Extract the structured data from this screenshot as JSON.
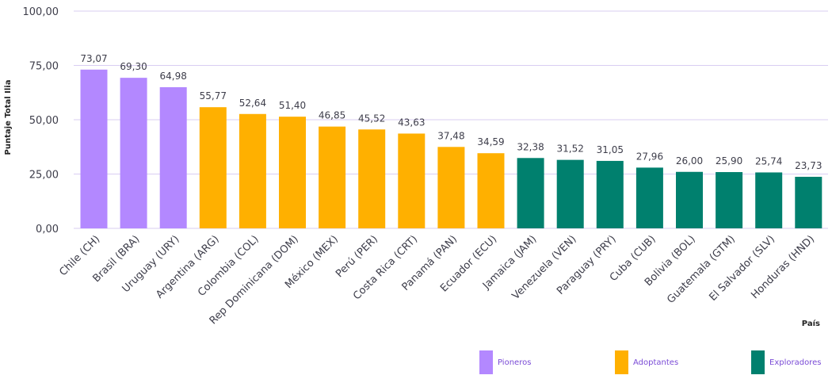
{
  "chart_data": {
    "type": "bar",
    "title": "",
    "xlabel": "País",
    "ylabel": "Puntaje Total Ilia",
    "ylim": [
      0,
      100
    ],
    "yticks": [
      "0,00",
      "25,00",
      "50,00",
      "75,00",
      "100,00"
    ],
    "categories": [
      "Chile (CH)",
      "Brasil (BRA)",
      "Uruguay (URY)",
      "Argentina (ARG)",
      "Colombia (COL)",
      "Rep Dominicana (DOM)",
      "México (MEX)",
      "Perú (PER)",
      "Costa Rica (CRT)",
      "Panamá (PAN)",
      "Ecuador (ECU)",
      "Jamaica (JAM)",
      "Venezuela (VEN)",
      "Paraguay (PRY)",
      "Cuba (CUB)",
      "Bolivia (BOL)",
      "Guatemala (GTM)",
      "El Salvador (SLV)",
      "Honduras (HND)"
    ],
    "values": [
      73.07,
      69.3,
      64.98,
      55.77,
      52.64,
      51.4,
      46.85,
      45.52,
      43.63,
      37.48,
      34.59,
      32.38,
      31.52,
      31.05,
      27.96,
      26.0,
      25.9,
      25.74,
      23.73
    ],
    "value_labels": [
      "73,07",
      "69,30",
      "64,98",
      "55,77",
      "52,64",
      "51,40",
      "46,85",
      "45,52",
      "43,63",
      "37,48",
      "34,59",
      "32,38",
      "31,52",
      "31,05",
      "27,96",
      "26,00",
      "25,90",
      "25,74",
      "23,73"
    ],
    "groups": [
      0,
      0,
      0,
      1,
      1,
      1,
      1,
      1,
      1,
      1,
      1,
      2,
      2,
      2,
      2,
      2,
      2,
      2,
      2
    ],
    "series": [
      {
        "name": "Pioneros",
        "color": "#b388ff"
      },
      {
        "name": "Adoptantes",
        "color": "#ffb000"
      },
      {
        "name": "Exploradores",
        "color": "#00806e"
      }
    ],
    "grid": true
  },
  "legend": {
    "pioneros": "Pioneros",
    "adoptantes": "Adoptantes",
    "exploradores": "Exploradores"
  },
  "colors": {
    "grid": "#d9cdf2",
    "legend_text": "#7a4bd6"
  }
}
